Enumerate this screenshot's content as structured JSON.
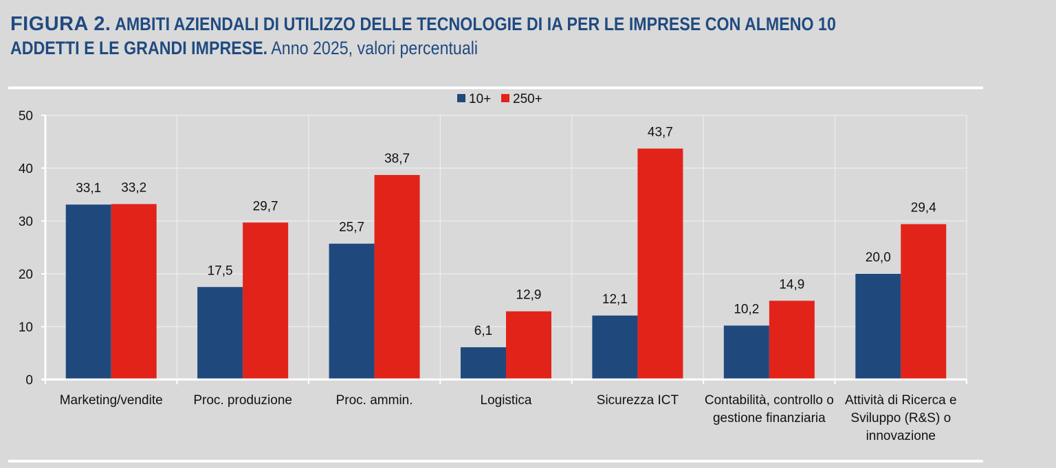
{
  "header": {
    "figure_label": "FIGURA 2.",
    "title_line1": "AMBITI AZIENDALI DI UTILIZZO DELLE TECNOLOGIE DI IA  PER LE IMPRESE CON ALMENO 10",
    "title_line2_bold": "ADDETTI E LE GRANDI IMPRESE.",
    "title_line2_normal": " Anno 2025, valori percentuali"
  },
  "chart_data": {
    "type": "bar",
    "title": "Ambiti aziendali di utilizzo delle tecnologie di IA per le imprese con almeno 10 addetti e le grandi imprese. Anno 2025, valori percentuali",
    "xlabel": "",
    "ylabel": "",
    "ylim": [
      0,
      50
    ],
    "yticks": [
      0,
      10,
      20,
      30,
      40,
      50
    ],
    "grid": true,
    "legend_position": "top-center",
    "categories": [
      [
        "Marketing/vendite"
      ],
      [
        "Proc. produzione"
      ],
      [
        "Proc. ammin."
      ],
      [
        "Logistica"
      ],
      [
        "Sicurezza ICT"
      ],
      [
        "Contabilità, controllo o",
        "gestione finanziaria"
      ],
      [
        "Attività di Ricerca e",
        "Sviluppo (R&S) o",
        "innovazione"
      ]
    ],
    "series": [
      {
        "name": "10+",
        "color": "#1f497d",
        "values": [
          33.1,
          17.5,
          25.7,
          6.1,
          12.1,
          10.2,
          20.0
        ],
        "labels": [
          "33,1",
          "17,5",
          "25,7",
          "6,1",
          "12,1",
          "10,2",
          "20,0"
        ]
      },
      {
        "name": "250+",
        "color": "#e2231a",
        "values": [
          33.2,
          29.7,
          38.7,
          12.9,
          43.7,
          14.9,
          29.4
        ],
        "labels": [
          "33,2",
          "29,7",
          "38,7",
          "12,9",
          "43,7",
          "14,9",
          "29,4"
        ]
      }
    ]
  }
}
